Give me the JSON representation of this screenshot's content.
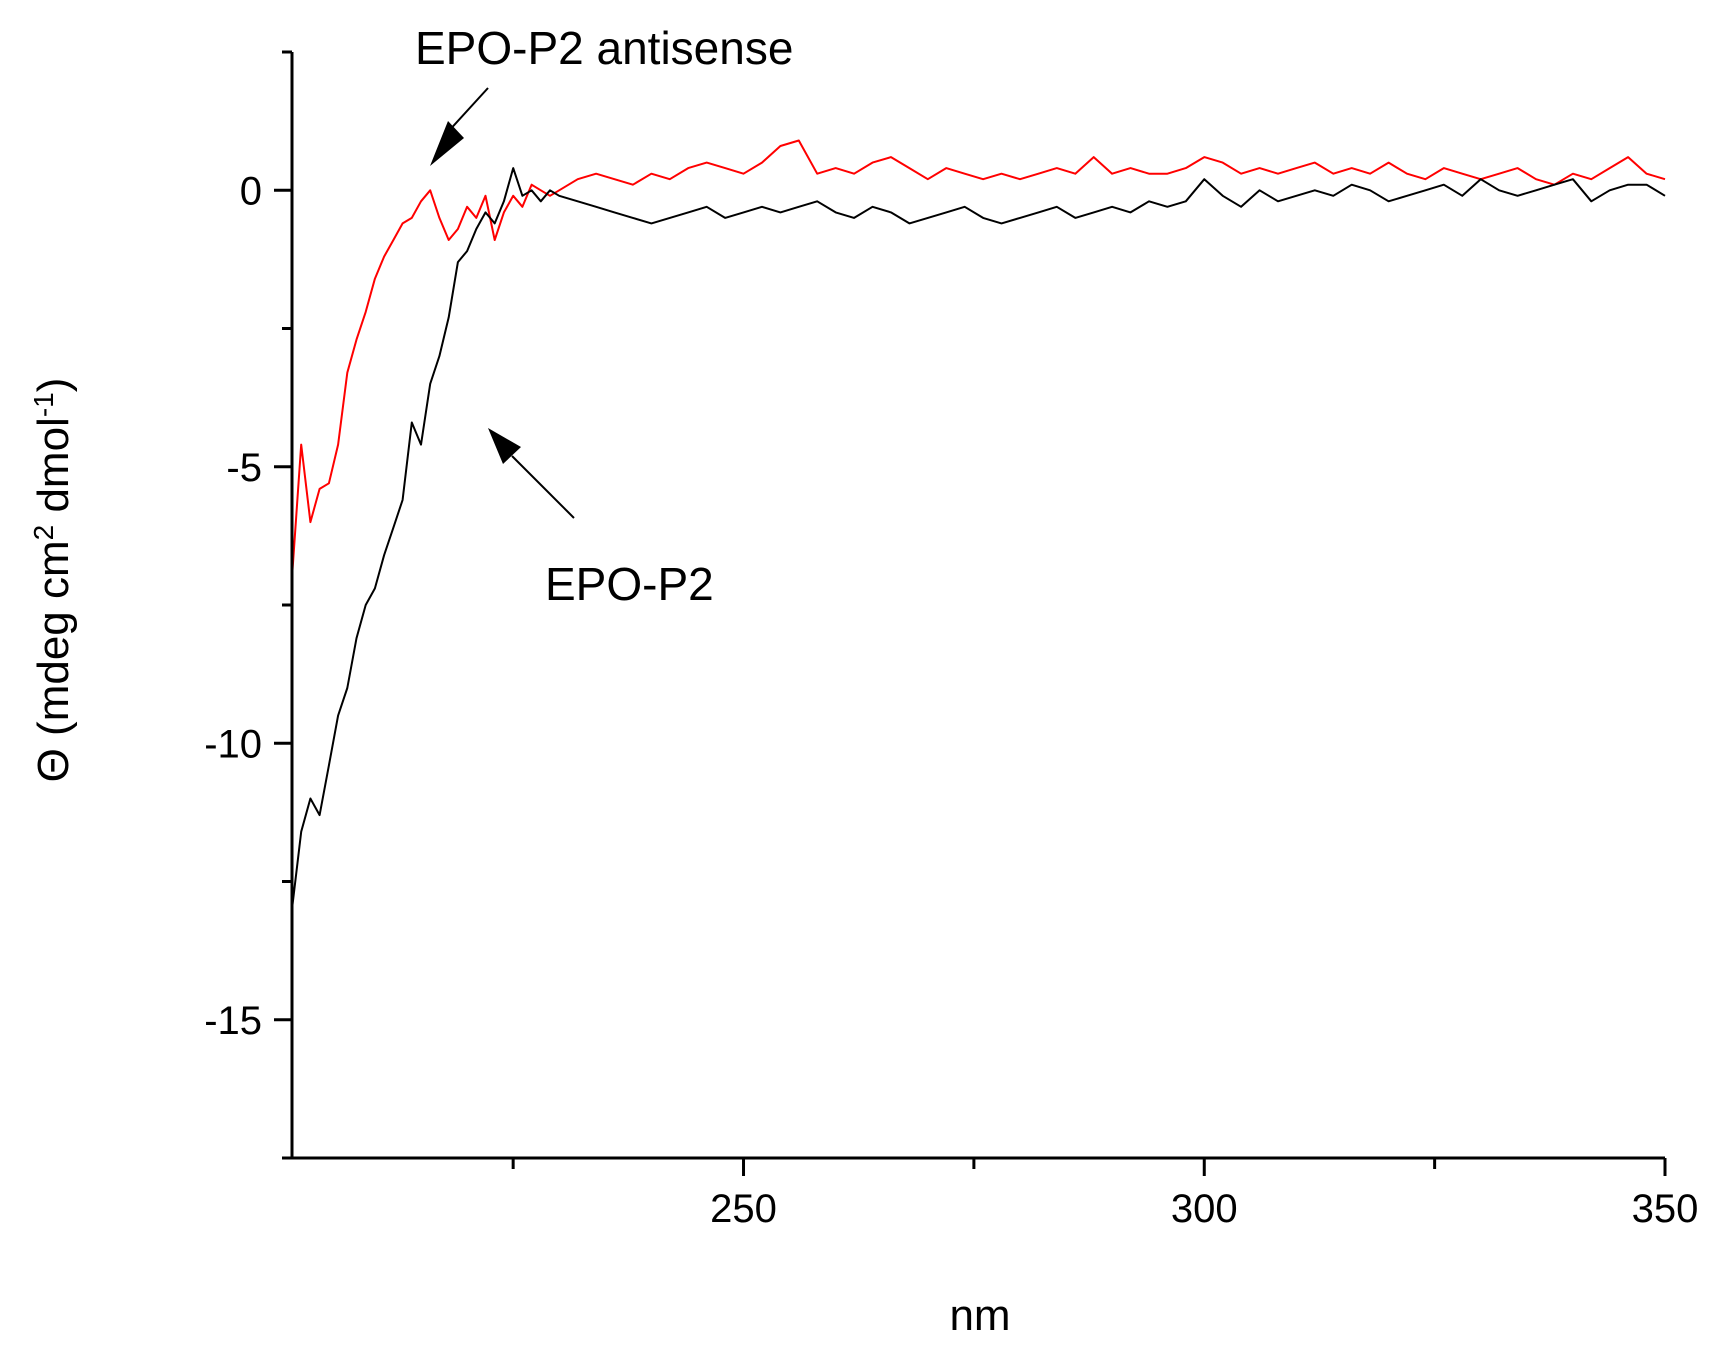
{
  "chart_data": {
    "type": "line",
    "title": "",
    "xlabel": "nm",
    "ylabel": "Θ (mdeg cm",
    "ylabel_sup1": "2",
    "ylabel_mid": " dmol",
    "ylabel_sup2": "-1",
    "ylabel_end": ")",
    "xlim": [
      201,
      350
    ],
    "ylim": [
      -17.5,
      2.5
    ],
    "x_ticks_major": [
      250,
      300,
      350
    ],
    "x_tick_labels": [
      "250",
      "300",
      "350"
    ],
    "x_ticks_minor": [
      225,
      275,
      325
    ],
    "y_ticks_major": [
      0,
      -5,
      -10,
      -15
    ],
    "y_tick_labels": [
      "0",
      "-5",
      "-10",
      "-15"
    ],
    "grid": false,
    "legend": "none",
    "series": [
      {
        "name": "EPO-P2 antisense",
        "color": "#ff0000",
        "x": [
          201,
          202,
          203,
          204,
          205,
          206,
          207,
          208,
          209,
          210,
          211,
          212,
          213,
          214,
          215,
          216,
          217,
          218,
          219,
          220,
          221,
          222,
          223,
          224,
          225,
          226,
          227,
          228,
          229,
          230,
          232,
          234,
          236,
          238,
          240,
          242,
          244,
          246,
          248,
          250,
          252,
          254,
          256,
          258,
          260,
          262,
          264,
          266,
          268,
          270,
          272,
          274,
          276,
          278,
          280,
          282,
          284,
          286,
          288,
          290,
          292,
          294,
          296,
          298,
          300,
          302,
          304,
          306,
          308,
          310,
          312,
          314,
          316,
          318,
          320,
          322,
          324,
          326,
          328,
          330,
          332,
          334,
          336,
          338,
          340,
          342,
          344,
          346,
          348,
          350
        ],
        "values": [
          -7.0,
          -4.6,
          -6.0,
          -5.4,
          -5.3,
          -4.6,
          -3.3,
          -2.7,
          -2.2,
          -1.6,
          -1.2,
          -0.9,
          -0.6,
          -0.5,
          -0.2,
          0.0,
          -0.5,
          -0.9,
          -0.7,
          -0.3,
          -0.5,
          -0.1,
          -0.9,
          -0.4,
          -0.1,
          -0.3,
          0.1,
          0.0,
          -0.1,
          0.0,
          0.2,
          0.3,
          0.2,
          0.1,
          0.3,
          0.2,
          0.4,
          0.5,
          0.4,
          0.3,
          0.5,
          0.8,
          0.9,
          0.3,
          0.4,
          0.3,
          0.5,
          0.6,
          0.4,
          0.2,
          0.4,
          0.3,
          0.2,
          0.3,
          0.2,
          0.3,
          0.4,
          0.3,
          0.6,
          0.3,
          0.4,
          0.3,
          0.3,
          0.4,
          0.6,
          0.5,
          0.3,
          0.4,
          0.3,
          0.4,
          0.5,
          0.3,
          0.4,
          0.3,
          0.5,
          0.3,
          0.2,
          0.4,
          0.3,
          0.2,
          0.3,
          0.4,
          0.2,
          0.1,
          0.3,
          0.2,
          0.4,
          0.6,
          0.3,
          0.2
        ]
      },
      {
        "name": "EPO-P2",
        "color": "#000000",
        "x": [
          201,
          202,
          203,
          204,
          205,
          206,
          207,
          208,
          209,
          210,
          211,
          212,
          213,
          214,
          215,
          216,
          217,
          218,
          219,
          220,
          221,
          222,
          223,
          224,
          225,
          226,
          227,
          228,
          229,
          230,
          232,
          234,
          236,
          238,
          240,
          242,
          244,
          246,
          248,
          250,
          252,
          254,
          256,
          258,
          260,
          262,
          264,
          266,
          268,
          270,
          272,
          274,
          276,
          278,
          280,
          282,
          284,
          286,
          288,
          290,
          292,
          294,
          296,
          298,
          300,
          302,
          304,
          306,
          308,
          310,
          312,
          314,
          316,
          318,
          320,
          322,
          324,
          326,
          328,
          330,
          332,
          334,
          336,
          338,
          340,
          342,
          344,
          346,
          348,
          350
        ],
        "values": [
          -13.0,
          -11.6,
          -11.0,
          -11.3,
          -10.4,
          -9.5,
          -9.0,
          -8.1,
          -7.5,
          -7.2,
          -6.6,
          -6.1,
          -5.6,
          -4.2,
          -4.6,
          -3.5,
          -3.0,
          -2.3,
          -1.3,
          -1.1,
          -0.7,
          -0.4,
          -0.6,
          -0.2,
          0.4,
          -0.1,
          0.0,
          -0.2,
          0.0,
          -0.1,
          -0.2,
          -0.3,
          -0.4,
          -0.5,
          -0.6,
          -0.5,
          -0.4,
          -0.3,
          -0.5,
          -0.4,
          -0.3,
          -0.4,
          -0.3,
          -0.2,
          -0.4,
          -0.5,
          -0.3,
          -0.4,
          -0.6,
          -0.5,
          -0.4,
          -0.3,
          -0.5,
          -0.6,
          -0.5,
          -0.4,
          -0.3,
          -0.5,
          -0.4,
          -0.3,
          -0.4,
          -0.2,
          -0.3,
          -0.2,
          0.2,
          -0.1,
          -0.3,
          0.0,
          -0.2,
          -0.1,
          0.0,
          -0.1,
          0.1,
          0.0,
          -0.2,
          -0.1,
          0.0,
          0.1,
          -0.1,
          0.2,
          0.0,
          -0.1,
          0.0,
          0.1,
          0.2,
          -0.2,
          0.0,
          0.1,
          0.1,
          -0.1
        ]
      }
    ],
    "annotations": [
      {
        "text": "EPO-P2 antisense",
        "series": "EPO-P2 antisense",
        "x": 216,
        "y": 0.5
      },
      {
        "text": "EPO-P2",
        "series": "EPO-P2",
        "x": 221,
        "y": -4.2
      }
    ]
  }
}
